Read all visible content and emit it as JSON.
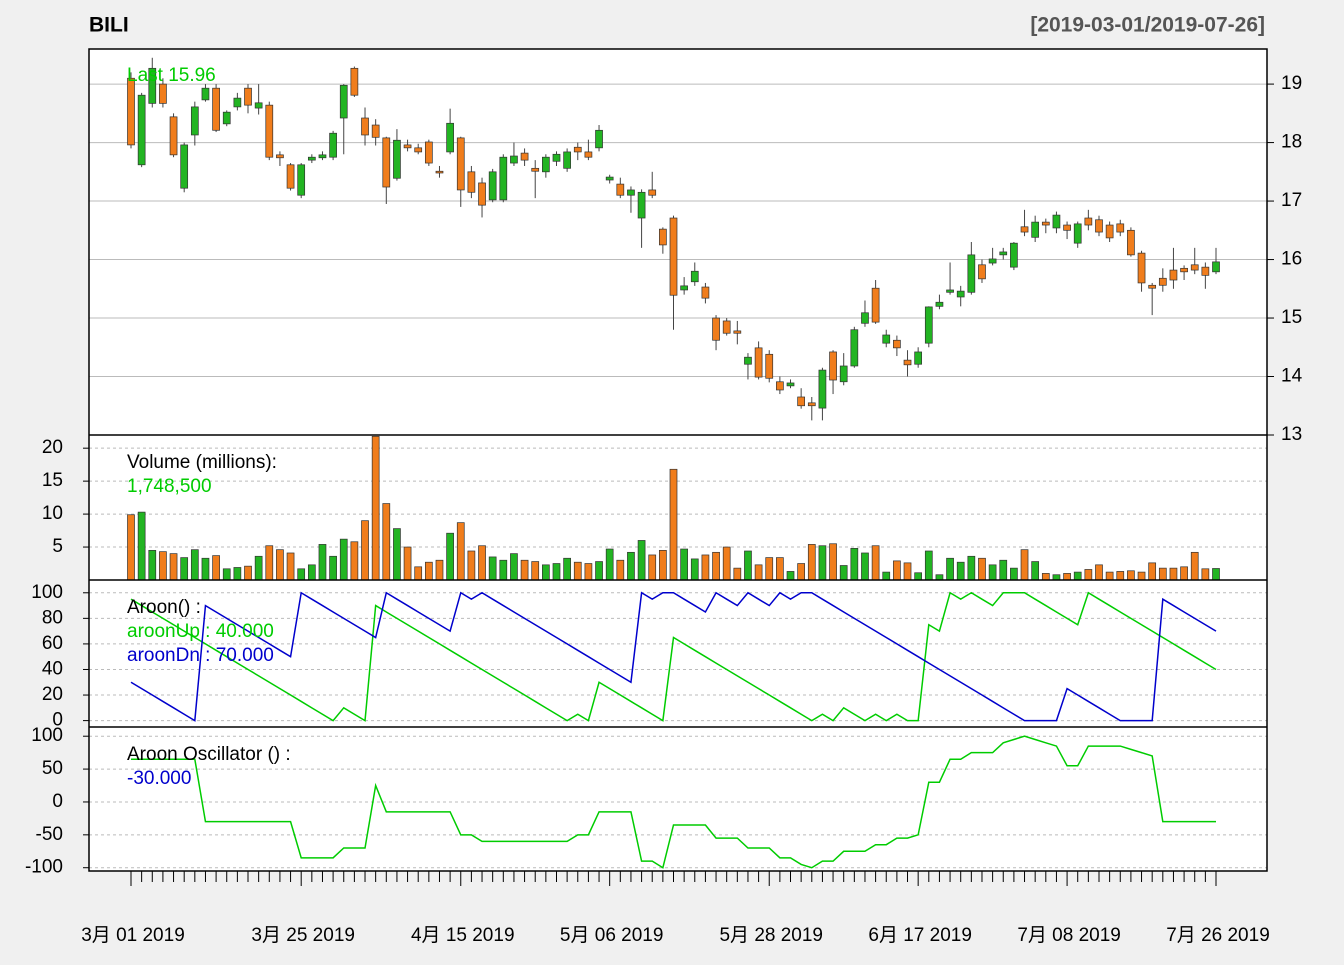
{
  "chart_data": [
    {
      "type": "candlestick",
      "title": "BILI",
      "subtitle": "[2019-03-01/2019-07-26]",
      "annotation": "Last 15.96",
      "annotation_color": "#00cc00",
      "categories": [
        "3月 01 2019",
        null,
        null,
        null,
        null,
        null,
        null,
        null,
        null,
        null,
        null,
        null,
        null,
        null,
        null,
        null,
        "3月 25 2019",
        null,
        null,
        null,
        null,
        null,
        null,
        null,
        null,
        null,
        null,
        null,
        null,
        null,
        null,
        "4月 15 2019",
        null,
        null,
        null,
        null,
        null,
        null,
        null,
        null,
        null,
        null,
        null,
        null,
        null,
        "5月 06 2019",
        null,
        null,
        null,
        null,
        null,
        null,
        null,
        null,
        null,
        null,
        null,
        null,
        null,
        null,
        "5月 28 2019",
        null,
        null,
        null,
        null,
        null,
        null,
        null,
        null,
        null,
        null,
        null,
        null,
        null,
        "6月 17 2019",
        null,
        null,
        null,
        null,
        null,
        null,
        null,
        null,
        null,
        null,
        null,
        null,
        null,
        "7月 08 2019",
        null,
        null,
        null,
        null,
        null,
        null,
        null,
        null,
        null,
        null,
        null,
        null,
        null,
        "7月 26 2019"
      ],
      "open": [
        19.1,
        17.62,
        18.67,
        19.0,
        18.44,
        17.22,
        18.13,
        18.73,
        18.93,
        18.32,
        18.61,
        18.93,
        18.59,
        18.64,
        17.79,
        17.62,
        17.1,
        17.7,
        17.74,
        17.75,
        18.42,
        19.27,
        18.42,
        18.3,
        18.08,
        17.39,
        17.96,
        17.91,
        18.01,
        17.51,
        17.84,
        18.08,
        17.5,
        17.31,
        17.02,
        17.02,
        17.65,
        17.82,
        17.56,
        17.5,
        17.68,
        17.56,
        17.92,
        17.84,
        17.91,
        17.36,
        17.29,
        17.1,
        16.71,
        17.19,
        16.52,
        16.71,
        15.48,
        15.62,
        15.53,
        15.0,
        14.95,
        14.78,
        14.21,
        14.49,
        14.38,
        13.91,
        13.84,
        13.65,
        13.55,
        13.46,
        14.42,
        13.91,
        14.18,
        14.91,
        15.51,
        14.57,
        14.62,
        14.28,
        14.21,
        14.57,
        15.2,
        15.44,
        15.36,
        15.44,
        15.91,
        15.94,
        16.08,
        15.87,
        16.56,
        16.38,
        16.64,
        16.54,
        16.59,
        16.28,
        16.71,
        16.68,
        16.59,
        16.61,
        16.5,
        16.11,
        15.56,
        15.68,
        15.82,
        15.85,
        15.91,
        15.87,
        15.79
      ],
      "high": [
        19.2,
        18.85,
        19.45,
        19.1,
        18.5,
        18.0,
        18.7,
        19.0,
        19.0,
        18.55,
        18.85,
        19.0,
        19.0,
        18.7,
        17.85,
        17.65,
        17.65,
        17.8,
        17.85,
        18.2,
        19.0,
        19.3,
        18.6,
        18.4,
        18.1,
        18.23,
        18.05,
        17.98,
        18.05,
        17.6,
        18.58,
        18.1,
        17.6,
        17.4,
        17.55,
        17.8,
        18.0,
        17.9,
        17.7,
        17.8,
        17.85,
        17.9,
        18.0,
        18.05,
        18.3,
        17.45,
        17.4,
        17.25,
        17.2,
        17.5,
        16.55,
        16.75,
        15.7,
        15.95,
        15.6,
        15.05,
        15.0,
        14.95,
        14.4,
        14.6,
        14.45,
        14.0,
        13.95,
        13.8,
        13.65,
        14.15,
        14.45,
        14.4,
        14.85,
        15.3,
        15.65,
        14.8,
        14.7,
        14.45,
        14.5,
        15.2,
        15.4,
        15.95,
        15.55,
        16.3,
        16.0,
        16.2,
        16.2,
        16.3,
        16.85,
        16.75,
        16.7,
        16.82,
        16.65,
        16.65,
        16.85,
        16.75,
        16.65,
        16.68,
        16.55,
        16.15,
        15.6,
        15.85,
        16.2,
        15.9,
        16.2,
        15.95,
        16.2
      ],
      "low": [
        17.9,
        17.58,
        18.6,
        18.6,
        17.75,
        17.15,
        17.95,
        18.7,
        18.18,
        18.28,
        18.55,
        18.5,
        18.48,
        17.7,
        17.6,
        17.18,
        17.05,
        17.65,
        17.7,
        17.7,
        17.8,
        18.78,
        17.95,
        17.95,
        16.95,
        17.35,
        17.85,
        17.8,
        17.6,
        17.4,
        17.8,
        16.9,
        17.05,
        16.72,
        16.98,
        16.98,
        17.6,
        17.6,
        17.05,
        17.4,
        17.6,
        17.5,
        17.7,
        17.7,
        17.85,
        17.3,
        17.05,
        16.8,
        16.2,
        17.05,
        16.1,
        14.8,
        15.4,
        15.55,
        15.25,
        14.45,
        14.7,
        14.55,
        13.95,
        13.95,
        13.9,
        13.7,
        13.8,
        13.45,
        13.25,
        13.25,
        13.7,
        13.85,
        14.15,
        14.85,
        14.9,
        14.5,
        14.35,
        14.0,
        14.15,
        14.5,
        15.15,
        15.4,
        15.2,
        15.4,
        15.6,
        15.9,
        16.0,
        15.82,
        16.4,
        16.3,
        16.45,
        16.45,
        16.35,
        16.2,
        16.5,
        16.4,
        16.3,
        16.4,
        16.05,
        15.45,
        15.05,
        15.45,
        15.5,
        15.65,
        15.75,
        15.5,
        15.75
      ],
      "close": [
        17.96,
        18.81,
        19.27,
        18.67,
        17.79,
        17.96,
        18.61,
        18.93,
        18.21,
        18.52,
        18.76,
        18.64,
        18.68,
        17.75,
        17.74,
        17.22,
        17.62,
        17.75,
        17.79,
        18.16,
        18.98,
        18.81,
        18.13,
        18.09,
        17.24,
        18.04,
        17.91,
        17.84,
        17.65,
        17.48,
        18.33,
        17.19,
        17.15,
        16.93,
        17.5,
        17.75,
        17.77,
        17.7,
        17.51,
        17.75,
        17.8,
        17.84,
        17.84,
        17.75,
        18.21,
        17.41,
        17.1,
        17.19,
        17.15,
        17.1,
        16.25,
        15.39,
        15.55,
        15.8,
        15.34,
        14.62,
        14.74,
        14.74,
        14.33,
        13.99,
        13.97,
        13.77,
        13.89,
        13.5,
        13.5,
        14.11,
        13.94,
        14.18,
        14.8,
        15.09,
        14.93,
        14.71,
        14.49,
        14.2,
        14.42,
        15.19,
        15.27,
        15.48,
        15.46,
        16.08,
        15.67,
        16.01,
        16.13,
        16.28,
        16.47,
        16.64,
        16.59,
        16.76,
        16.5,
        16.61,
        16.59,
        16.47,
        16.37,
        16.47,
        16.08,
        15.6,
        15.51,
        15.56,
        15.65,
        15.79,
        15.82,
        15.73,
        15.96
      ],
      "up_color": "#22b422",
      "down_color": "#f07d1c",
      "ylim": [
        13,
        19.6
      ],
      "yticks": [
        13,
        14,
        15,
        16,
        17,
        18,
        19
      ],
      "grid": true,
      "grid_style": "solid",
      "y_axis_side": "right"
    },
    {
      "type": "bar",
      "title": "Volume (millions):",
      "values": [
        9.9,
        10.3,
        4.5,
        4.3,
        4.0,
        3.4,
        4.6,
        3.3,
        3.7,
        1.7,
        1.9,
        2.1,
        3.6,
        5.2,
        4.6,
        4.1,
        1.7,
        2.3,
        5.4,
        3.6,
        6.2,
        5.8,
        9.0,
        21.8,
        11.6,
        7.8,
        5.0,
        2.0,
        2.7,
        3.0,
        7.1,
        8.7,
        4.4,
        5.2,
        3.5,
        3.0,
        4.0,
        3.0,
        2.8,
        2.3,
        2.5,
        3.3,
        2.7,
        2.5,
        2.8,
        4.7,
        3.0,
        4.2,
        6.0,
        3.8,
        4.5,
        16.8,
        4.7,
        3.2,
        3.8,
        4.2,
        5.0,
        1.8,
        4.4,
        2.3,
        3.4,
        3.4,
        1.3,
        2.5,
        5.4,
        5.2,
        5.5,
        2.2,
        4.8,
        4.1,
        5.2,
        1.2,
        2.9,
        2.6,
        1.1,
        4.4,
        0.8,
        3.3,
        2.7,
        3.6,
        3.3,
        2.3,
        3.0,
        1.8,
        4.6,
        2.8,
        1.0,
        0.8,
        1.0,
        1.2,
        1.6,
        2.3,
        1.2,
        1.3,
        1.4,
        1.2,
        2.6,
        1.8,
        1.8,
        2.0,
        4.2,
        1.7,
        1.7485
      ],
      "last": {
        "value": 1.7485,
        "label": "1,748,500"
      },
      "last_color": "#00cc00",
      "ylim": [
        0,
        22
      ],
      "yticks": [
        5,
        10,
        15,
        20
      ],
      "grid": true,
      "grid_style": "dotted",
      "y_axis_side": "left"
    },
    {
      "type": "line",
      "title": "Aroon() :",
      "series": [
        {
          "name": "aroonUp : 40.000",
          "color": "#00cc00",
          "values": [
            95,
            90,
            85,
            80,
            75,
            70,
            65,
            60,
            55,
            50,
            45,
            40,
            35,
            30,
            25,
            20,
            15,
            10,
            5,
            0,
            10,
            5,
            0,
            90,
            85,
            80,
            75,
            70,
            65,
            60,
            55,
            50,
            45,
            40,
            35,
            30,
            25,
            20,
            15,
            10,
            5,
            0,
            5,
            0,
            30,
            25,
            20,
            15,
            10,
            5,
            0,
            65,
            60,
            55,
            50,
            45,
            40,
            35,
            30,
            25,
            20,
            15,
            10,
            5,
            0,
            5,
            0,
            10,
            5,
            0,
            5,
            0,
            5,
            0,
            0,
            75,
            70,
            100,
            95,
            100,
            95,
            90,
            100,
            100,
            100,
            95,
            90,
            85,
            80,
            75,
            100,
            95,
            90,
            85,
            80,
            75,
            70,
            65,
            60,
            55,
            50,
            45,
            40
          ]
        },
        {
          "name": "aroonDn : 70.000",
          "color": "#0000cc",
          "values": [
            30,
            25,
            20,
            15,
            10,
            5,
            0,
            90,
            85,
            80,
            75,
            70,
            65,
            60,
            55,
            50,
            100,
            95,
            90,
            85,
            80,
            75,
            70,
            65,
            100,
            95,
            90,
            85,
            80,
            75,
            70,
            100,
            95,
            100,
            95,
            90,
            85,
            80,
            75,
            70,
            65,
            60,
            55,
            50,
            45,
            40,
            35,
            30,
            100,
            95,
            100,
            100,
            95,
            90,
            85,
            100,
            95,
            90,
            100,
            95,
            90,
            100,
            95,
            100,
            100,
            95,
            90,
            85,
            80,
            75,
            70,
            65,
            60,
            55,
            50,
            45,
            40,
            35,
            30,
            25,
            20,
            15,
            10,
            5,
            0,
            0,
            0,
            0,
            25,
            20,
            15,
            10,
            5,
            0,
            0,
            0,
            0,
            95,
            90,
            85,
            80,
            75,
            70
          ]
        }
      ],
      "ylim": [
        -5,
        110
      ],
      "yticks": [
        0,
        20,
        40,
        60,
        80,
        100
      ],
      "grid": true,
      "grid_style": "dotted",
      "y_axis_side": "left"
    },
    {
      "type": "line",
      "title": "Aroon Oscillator () :",
      "series": [
        {
          "color": "#00cc00",
          "values": [
            65,
            65,
            65,
            65,
            65,
            65,
            65,
            -30,
            -30,
            -30,
            -30,
            -30,
            -30,
            -30,
            -30,
            -30,
            -85,
            -85,
            -85,
            -85,
            -70,
            -70,
            -70,
            25,
            -15,
            -15,
            -15,
            -15,
            -15,
            -15,
            -15,
            -50,
            -50,
            -60,
            -60,
            -60,
            -60,
            -60,
            -60,
            -60,
            -60,
            -60,
            -50,
            -50,
            -15,
            -15,
            -15,
            -15,
            -90,
            -90,
            -100,
            -35,
            -35,
            -35,
            -35,
            -55,
            -55,
            -55,
            -70,
            -70,
            -70,
            -85,
            -85,
            -95,
            -100,
            -90,
            -90,
            -75,
            -75,
            -75,
            -65,
            -65,
            -55,
            -55,
            -50,
            30,
            30,
            65,
            65,
            75,
            75,
            75,
            90,
            95,
            100,
            95,
            90,
            85,
            55,
            55,
            85,
            85,
            85,
            85,
            80,
            75,
            70,
            -30,
            -30,
            -30,
            -30,
            -30,
            -30
          ]
        }
      ],
      "last": {
        "value": -30,
        "label": "-30.000"
      },
      "last_color": "#0000cc",
      "ylim": [
        -105,
        114
      ],
      "yticks": [
        -100,
        -50,
        0,
        50,
        100
      ],
      "grid": true,
      "grid_style": "dotted",
      "y_axis_side": "left"
    }
  ]
}
